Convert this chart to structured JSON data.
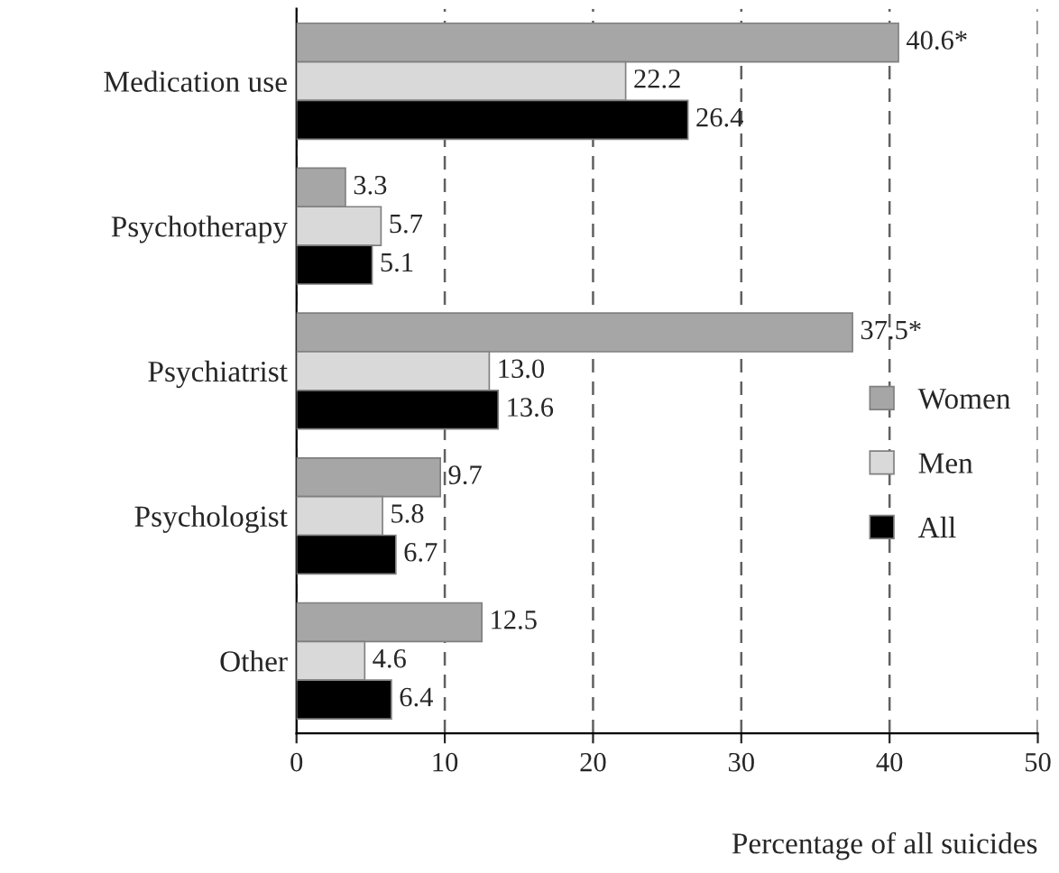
{
  "chart_data": {
    "type": "bar",
    "orientation": "horizontal",
    "xlabel": "Percentage of all suicides",
    "categories": [
      "Medication use",
      "Psychotherapy",
      "Psychiatrist",
      "Psychologist",
      "Other"
    ],
    "series": [
      {
        "name": "Women",
        "color": "#a6a6a6",
        "values": [
          40.6,
          3.3,
          37.5,
          9.7,
          12.5
        ],
        "value_labels": [
          "40.6*",
          "3.3",
          "37.5*",
          "9.7",
          "12.5"
        ]
      },
      {
        "name": "Men",
        "color": "#d9d9d9",
        "values": [
          22.2,
          5.7,
          13.0,
          5.8,
          4.6
        ],
        "value_labels": [
          "22.2",
          "5.7",
          "13.0",
          "5.8",
          "4.6"
        ]
      },
      {
        "name": "All",
        "color": "#000000",
        "values": [
          26.4,
          5.1,
          13.6,
          6.7,
          6.4
        ],
        "value_labels": [
          "26.4",
          "5.1",
          "13.6",
          "6.7",
          "6.4"
        ]
      }
    ],
    "xlim": [
      0,
      50
    ],
    "xticks": [
      0,
      10,
      20,
      30,
      40,
      50
    ],
    "grid": "x",
    "legend": "right"
  }
}
